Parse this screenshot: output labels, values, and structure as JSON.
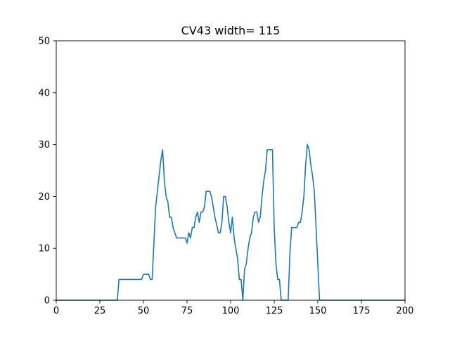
{
  "chart_data": {
    "type": "line",
    "title": "CV43 width= 115",
    "xlabel": "",
    "ylabel": "",
    "xlim": [
      0,
      200
    ],
    "ylim": [
      0,
      50
    ],
    "x_ticks": [
      0,
      25,
      50,
      75,
      100,
      125,
      150,
      175,
      200
    ],
    "y_ticks": [
      0,
      10,
      20,
      30,
      40,
      50
    ],
    "grid": false,
    "series": [
      {
        "color": "#1f77b4",
        "points": [
          [
            0,
            0
          ],
          [
            35,
            0
          ],
          [
            36,
            4
          ],
          [
            49,
            4
          ],
          [
            50,
            5
          ],
          [
            53,
            5
          ],
          [
            54,
            4
          ],
          [
            55,
            4
          ],
          [
            57,
            18
          ],
          [
            59,
            24
          ],
          [
            60,
            27
          ],
          [
            61,
            29
          ],
          [
            62,
            23
          ],
          [
            63,
            20
          ],
          [
            64,
            19
          ],
          [
            65,
            16
          ],
          [
            66,
            16
          ],
          [
            67,
            14
          ],
          [
            69,
            12
          ],
          [
            74,
            12
          ],
          [
            75,
            11
          ],
          [
            76,
            13
          ],
          [
            77,
            12
          ],
          [
            78,
            14
          ],
          [
            79,
            14
          ],
          [
            80,
            16
          ],
          [
            81,
            17
          ],
          [
            82,
            15
          ],
          [
            83,
            17
          ],
          [
            84,
            17
          ],
          [
            85,
            18
          ],
          [
            86,
            21
          ],
          [
            88,
            21
          ],
          [
            89,
            20
          ],
          [
            91,
            16
          ],
          [
            93,
            13
          ],
          [
            94,
            13
          ],
          [
            95,
            15
          ],
          [
            96,
            20
          ],
          [
            97,
            20
          ],
          [
            98,
            18
          ],
          [
            99,
            15
          ],
          [
            100,
            13
          ],
          [
            101,
            16
          ],
          [
            102,
            12
          ],
          [
            104,
            8
          ],
          [
            105,
            4
          ],
          [
            106,
            4
          ],
          [
            107,
            0
          ],
          [
            108,
            6
          ],
          [
            109,
            7
          ],
          [
            110,
            10
          ],
          [
            111,
            12
          ],
          [
            112,
            13
          ],
          [
            113,
            16
          ],
          [
            114,
            17
          ],
          [
            115,
            17
          ],
          [
            116,
            15
          ],
          [
            117,
            16
          ],
          [
            118,
            20
          ],
          [
            119,
            23
          ],
          [
            120,
            25
          ],
          [
            121,
            29
          ],
          [
            124,
            29
          ],
          [
            125,
            14
          ],
          [
            126,
            7
          ],
          [
            127,
            4
          ],
          [
            128,
            4
          ],
          [
            129,
            0
          ],
          [
            133,
            0
          ],
          [
            134,
            9
          ],
          [
            135,
            14
          ],
          [
            138,
            14
          ],
          [
            139,
            15
          ],
          [
            140,
            15
          ],
          [
            141,
            17
          ],
          [
            142,
            20
          ],
          [
            143,
            26
          ],
          [
            144,
            30
          ],
          [
            145,
            29
          ],
          [
            146,
            26
          ],
          [
            147,
            24
          ],
          [
            148,
            21
          ],
          [
            149,
            14
          ],
          [
            150,
            7
          ],
          [
            151,
            0
          ],
          [
            200,
            0
          ]
        ]
      }
    ]
  }
}
